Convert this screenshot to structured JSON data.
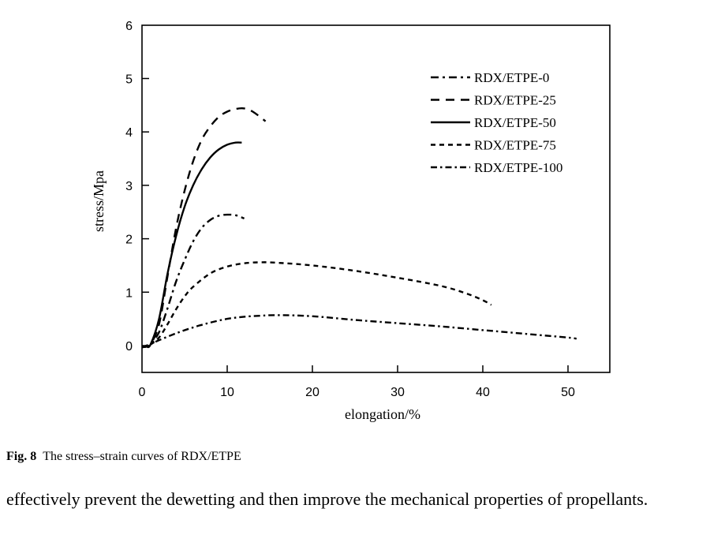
{
  "chart_data": {
    "type": "line",
    "title": "",
    "xlabel": "elongation/%",
    "ylabel": "stress/Mpa",
    "xlim": [
      0,
      55
    ],
    "ylim": [
      -0.5,
      6
    ],
    "xticks": [
      0,
      10,
      20,
      30,
      40,
      50
    ],
    "yticks": [
      0,
      1,
      2,
      3,
      4,
      5,
      6
    ],
    "grid": false,
    "legend_position": "top-right",
    "series": [
      {
        "name": "RDX/ETPE-0",
        "dash": "dash-dot",
        "x": [
          0,
          0.5,
          1,
          2,
          3,
          4,
          5,
          6,
          7,
          8,
          9,
          10,
          11,
          12
        ],
        "y": [
          -0.03,
          -0.02,
          0.02,
          0.25,
          0.7,
          1.2,
          1.6,
          1.95,
          2.2,
          2.35,
          2.43,
          2.45,
          2.44,
          2.38
        ]
      },
      {
        "name": "RDX/ETPE-25",
        "dash": "long-dash",
        "x": [
          0,
          0.5,
          1,
          2,
          3,
          4,
          5,
          6,
          7,
          8,
          9,
          10,
          11,
          12,
          13,
          14.5
        ],
        "y": [
          -0.03,
          -0.02,
          0.02,
          0.4,
          1.3,
          2.2,
          2.9,
          3.45,
          3.85,
          4.1,
          4.28,
          4.38,
          4.43,
          4.44,
          4.38,
          4.2
        ]
      },
      {
        "name": "RDX/ETPE-50",
        "dash": "solid",
        "x": [
          0,
          0.5,
          1,
          2,
          3,
          4,
          5,
          6,
          7,
          8,
          9,
          10,
          11,
          11.7
        ],
        "y": [
          -0.03,
          -0.02,
          0.02,
          0.5,
          1.35,
          2.05,
          2.6,
          3.0,
          3.3,
          3.52,
          3.67,
          3.76,
          3.8,
          3.8
        ]
      },
      {
        "name": "RDX/ETPE-75",
        "dash": "short-dash",
        "x": [
          0,
          1,
          2,
          3,
          4,
          5,
          6,
          8,
          10,
          12,
          14,
          16,
          20,
          25,
          30,
          35,
          38,
          40,
          41
        ],
        "y": [
          -0.03,
          0.02,
          0.15,
          0.4,
          0.68,
          0.92,
          1.1,
          1.35,
          1.48,
          1.54,
          1.56,
          1.55,
          1.5,
          1.4,
          1.27,
          1.12,
          0.98,
          0.85,
          0.76
        ]
      },
      {
        "name": "RDX/ETPE-100",
        "dash": "dash-dot-dot",
        "x": [
          0,
          1,
          2,
          4,
          6,
          8,
          10,
          12,
          14,
          16,
          20,
          25,
          30,
          35,
          40,
          45,
          50,
          51
        ],
        "y": [
          -0.03,
          0.03,
          0.1,
          0.23,
          0.34,
          0.43,
          0.5,
          0.54,
          0.56,
          0.57,
          0.55,
          0.48,
          0.42,
          0.36,
          0.29,
          0.22,
          0.15,
          0.13
        ]
      }
    ]
  },
  "caption": {
    "figure_label": "Fig. 8",
    "text": "The stress–strain curves of RDX/ETPE"
  },
  "body_text": "effectively prevent the dewetting and then improve the mechanical properties of propellants."
}
